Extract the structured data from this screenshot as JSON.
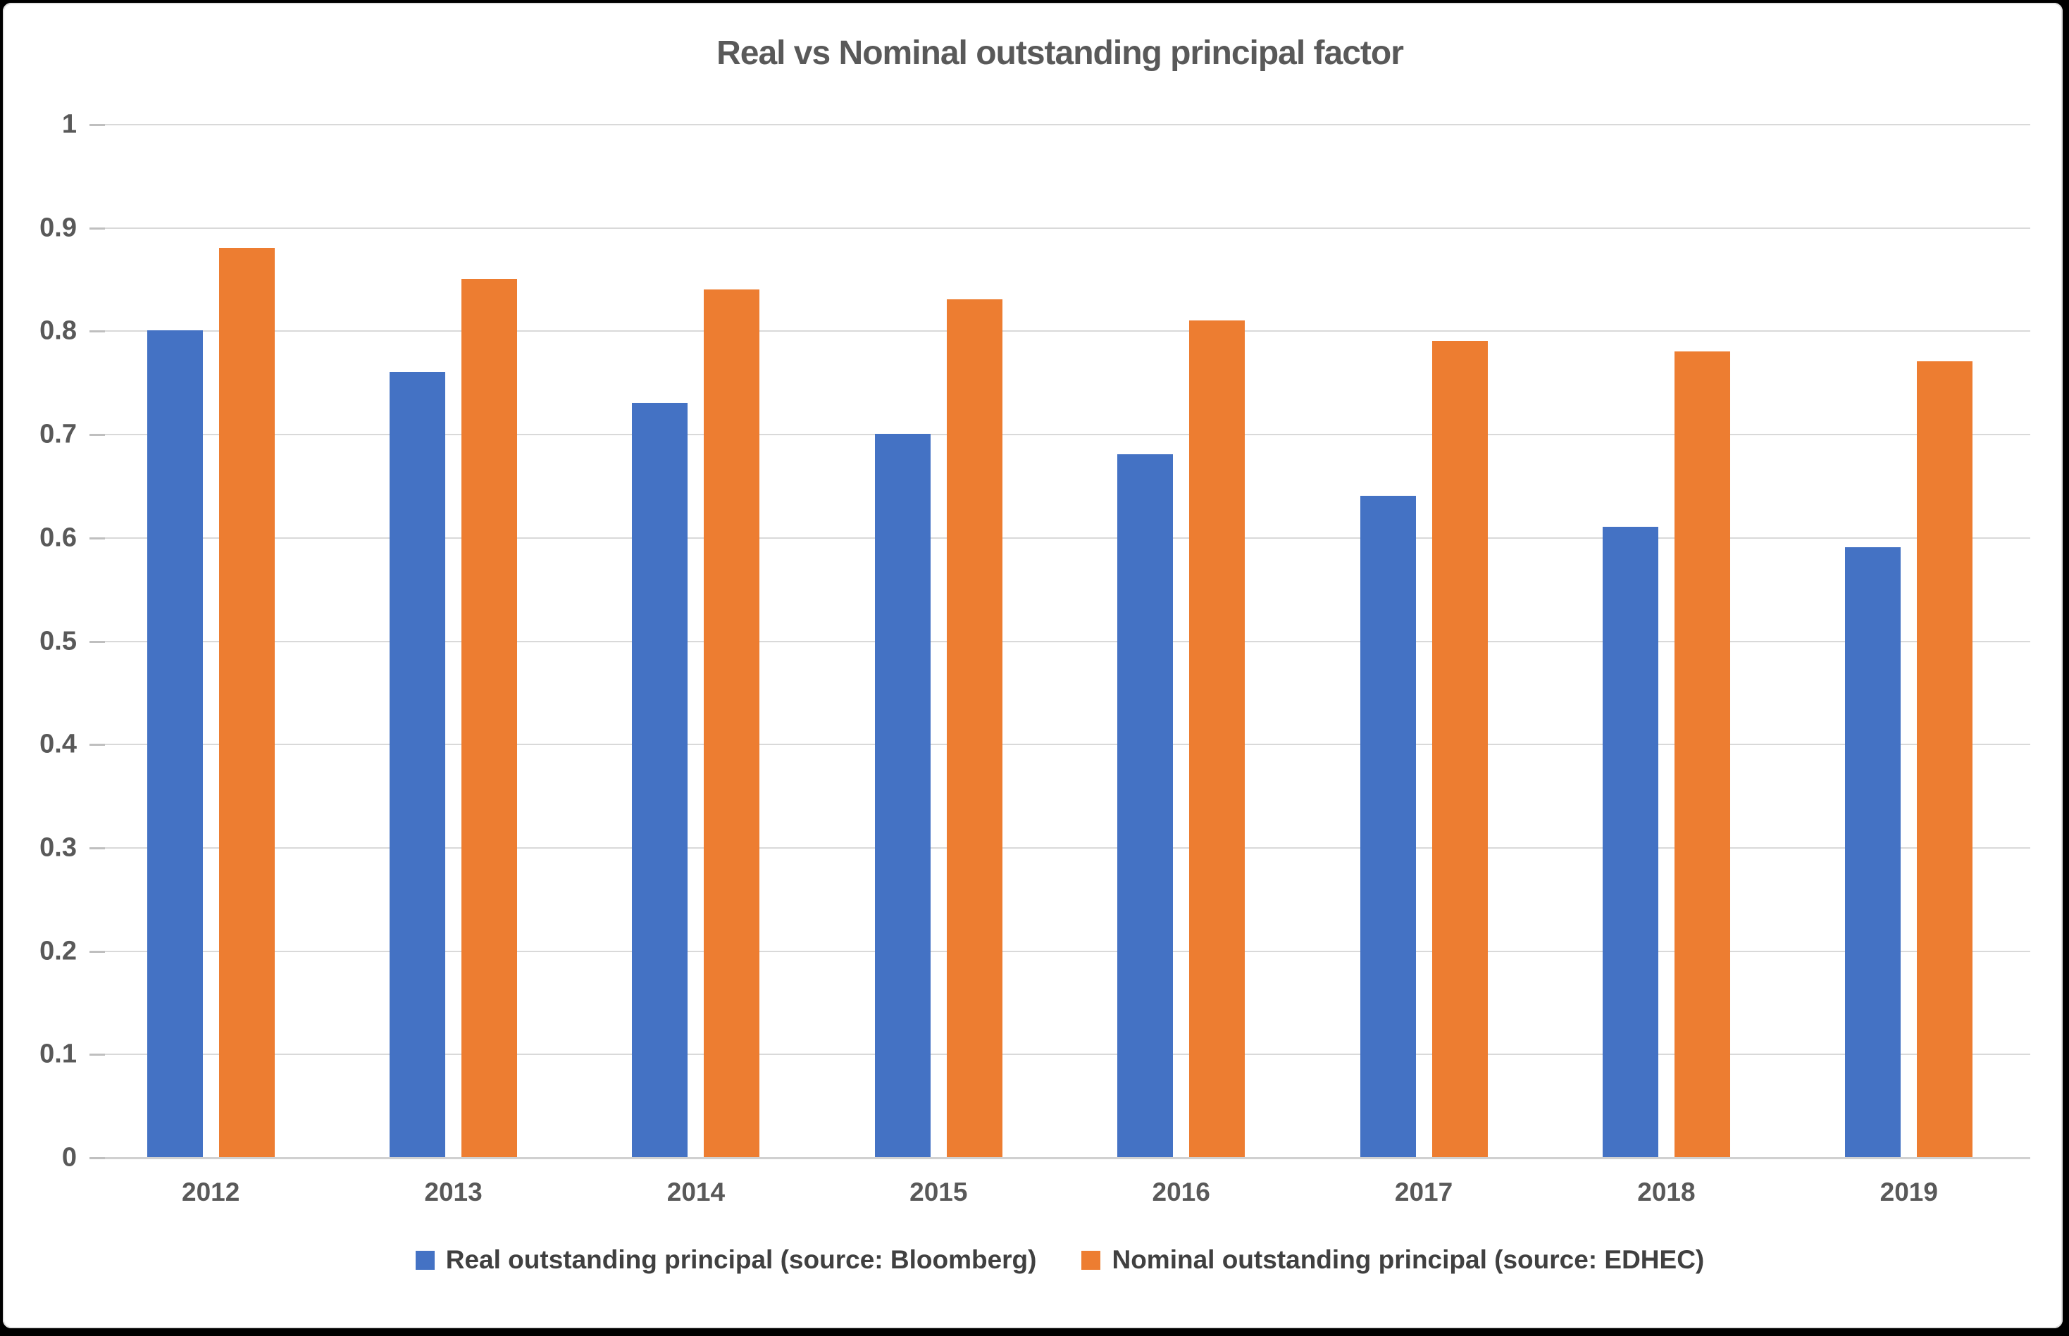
{
  "chart_data": {
    "type": "bar",
    "title": "Real vs Nominal outstanding principal factor",
    "categories": [
      "2012",
      "2013",
      "2014",
      "2015",
      "2016",
      "2017",
      "2018",
      "2019"
    ],
    "series": [
      {
        "name": "Real outstanding principal (source: Bloomberg)",
        "color": "#4472C4",
        "values": [
          0.8,
          0.76,
          0.73,
          0.7,
          0.68,
          0.64,
          0.61,
          0.59
        ]
      },
      {
        "name": "Nominal outstanding principal (source: EDHEC)",
        "color": "#ED7D31",
        "values": [
          0.88,
          0.85,
          0.84,
          0.83,
          0.81,
          0.79,
          0.78,
          0.77
        ]
      }
    ],
    "xlabel": "",
    "ylabel": "",
    "ylim": [
      0,
      1
    ],
    "y_ticks": [
      "1",
      "0.9",
      "0.8",
      "0.7",
      "0.6",
      "0.5",
      "0.4",
      "0.3",
      "0.2",
      "0.1",
      "0"
    ],
    "grid": true,
    "legend_position": "bottom"
  },
  "style": {
    "gridline_color": "#d9d9d9",
    "axis_line_color": "#d0d0d0",
    "tick_color": "#bfbfbf",
    "axis_text_color": "#595959",
    "title_color": "#595959",
    "legend_text_color": "#404040",
    "background": "#ffffff",
    "frame_color": "#000000"
  }
}
